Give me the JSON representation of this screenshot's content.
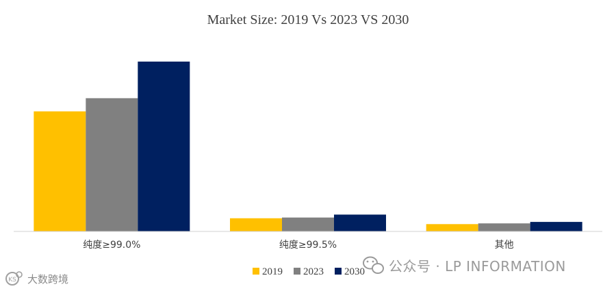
{
  "chart_data": {
    "type": "bar",
    "title": "Market Size: 2019 Vs 2023 VS 2030",
    "categories": [
      "纯度≥99.0%",
      "纯度≥99.5%",
      "其他"
    ],
    "series": [
      {
        "name": "2019",
        "color": "#FFC000",
        "values": [
          164,
          18,
          10
        ]
      },
      {
        "name": "2023",
        "color": "#808080",
        "values": [
          182,
          19,
          11
        ]
      },
      {
        "name": "2030",
        "color": "#002060",
        "values": [
          232,
          23,
          13
        ]
      }
    ],
    "ylim": [
      0,
      260
    ],
    "xlabel": "",
    "ylabel": "",
    "grid": false,
    "legend_position": "bottom"
  },
  "watermarks": {
    "wechat_text": "公众号 · LP INFORMATION",
    "left_text": "大数跨境",
    "left_logo": "KS"
  }
}
